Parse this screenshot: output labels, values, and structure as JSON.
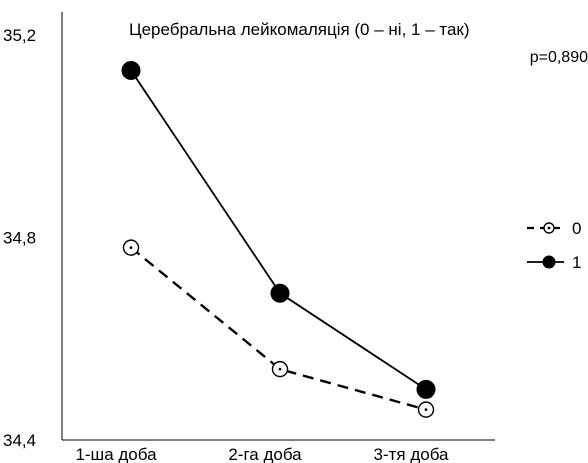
{
  "chart_data": {
    "type": "line",
    "title": "Церебральна лейкомаляція (0 – ні, 1 – так)",
    "annotation": "p=0,890",
    "xlabel": "",
    "ylabel": "",
    "categories": [
      "1-ша доба",
      "2-га доба",
      "3-тя доба"
    ],
    "y_ticks": [
      "34,4",
      "34,8",
      "35,2"
    ],
    "ylim": [
      34.4,
      35.2
    ],
    "grid": false,
    "legend_position": "right",
    "series": [
      {
        "name": "0",
        "values": [
          34.78,
          34.54,
          34.46
        ],
        "line_style": "dashed",
        "marker": "open-circle-dot",
        "color": "#000000"
      },
      {
        "name": "1",
        "values": [
          35.13,
          34.69,
          34.5
        ],
        "line_style": "solid",
        "marker": "filled-circle",
        "color": "#000000"
      }
    ]
  }
}
